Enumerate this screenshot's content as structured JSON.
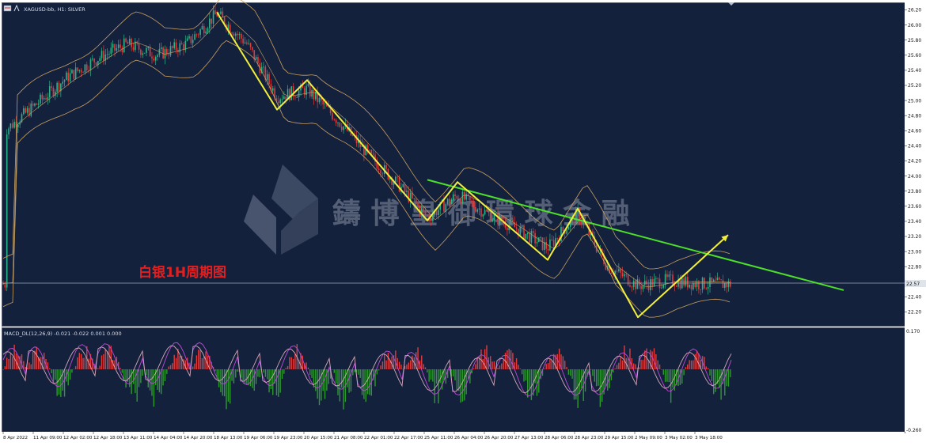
{
  "chart_data": [
    {
      "type": "candlestick",
      "symbol_label": "XAGUSD-bb, H1: SILVER",
      "annotation": "白银1H周期图",
      "watermark": "鑄 博 皇 御 環 球 金 融",
      "price_label": "22.57",
      "ylim": [
        22.0,
        26.3
      ],
      "y_ticks": [
        "26.20",
        "26.00",
        "25.80",
        "25.60",
        "25.40",
        "25.20",
        "25.00",
        "24.80",
        "24.60",
        "24.40",
        "24.20",
        "24.00",
        "23.80",
        "23.60",
        "23.40",
        "23.20",
        "23.00",
        "22.80",
        "22.60",
        "22.40",
        "22.20"
      ],
      "current_price": 22.57,
      "x_ticks": [
        "8 Apr 2022",
        "11 Apr 09:00",
        "12 Apr 02:00",
        "12 Apr 18:00",
        "13 Apr 11:00",
        "14 Apr 04:00",
        "14 Apr 20:00",
        "18 Apr 13:00",
        "19 Apr 06:00",
        "19 Apr 23:00",
        "20 Apr 15:00",
        "21 Apr 08:00",
        "22 Apr 01:00",
        "22 Apr 17:00",
        "25 Apr 11:00",
        "26 Apr 04:00",
        "26 Apr 20:00",
        "27 Apr 13:00",
        "28 Apr 06:00",
        "28 Apr 23:00",
        "29 Apr 15:00",
        "2 May 09:00",
        "3 May 02:00",
        "3 May 18:00"
      ],
      "price_path": [
        {
          "x": "8 Apr 2022",
          "y": 24.62
        },
        {
          "x": "11 Apr 09:00",
          "y": 24.95
        },
        {
          "x": "12 Apr 02:00",
          "y": 25.3
        },
        {
          "x": "12 Apr 18:00",
          "y": 25.55
        },
        {
          "x": "13 Apr 11:00",
          "y": 25.75
        },
        {
          "x": "14 Apr 04:00",
          "y": 25.6
        },
        {
          "x": "14 Apr 20:00",
          "y": 25.75
        },
        {
          "x": "18 Apr 13:00",
          "y": 26.15
        },
        {
          "x": "19 Apr 06:00",
          "y": 25.75
        },
        {
          "x": "19 Apr 23:00",
          "y": 25.05
        },
        {
          "x": "20 Apr 15:00",
          "y": 25.15
        },
        {
          "x": "21 Apr 08:00",
          "y": 24.75
        },
        {
          "x": "22 Apr 01:00",
          "y": 24.3
        },
        {
          "x": "22 Apr 17:00",
          "y": 23.9
        },
        {
          "x": "25 Apr 11:00",
          "y": 23.45
        },
        {
          "x": "26 Apr 04:00",
          "y": 23.75
        },
        {
          "x": "26 Apr 20:00",
          "y": 23.5
        },
        {
          "x": "27 Apr 13:00",
          "y": 23.3
        },
        {
          "x": "28 Apr 06:00",
          "y": 23.05
        },
        {
          "x": "28 Apr 23:00",
          "y": 23.5
        },
        {
          "x": "29 Apr 15:00",
          "y": 22.8
        },
        {
          "x": "2 May 09:00",
          "y": 22.55
        },
        {
          "x": "3 May 02:00",
          "y": 22.62
        },
        {
          "x": "3 May 18:00",
          "y": 22.57
        }
      ],
      "zigzag_yellow": [
        {
          "x": "18 Apr 13:00",
          "y": 26.17
        },
        {
          "x": "19 Apr 23:00",
          "y": 24.88
        },
        {
          "x": "20 Apr 15:00",
          "y": 25.27
        },
        {
          "x": "25 Apr 11:00",
          "y": 23.41
        },
        {
          "x": "26 Apr 04:00",
          "y": 23.92
        },
        {
          "x": "28 Apr 06:00",
          "y": 22.89
        },
        {
          "x": "28 Apr 23:00",
          "y": 23.57
        },
        {
          "x": "2 May 09:00",
          "y": 22.13
        },
        {
          "x": "3 May 18:00",
          "y": 23.22
        }
      ],
      "trendline_green": [
        {
          "x": "25 Apr 11:00",
          "y": 23.95
        },
        {
          "x": "3 May 18:00",
          "y": 23.0
        }
      ],
      "colors": {
        "background": "#14213d",
        "candle_up": "#2db38a",
        "candle_down": "#e03c3c",
        "bollinger": "#c8a060",
        "zigzag": "#f2ef3a",
        "trendline": "#4ce02a",
        "annotation": "#e02020",
        "watermark": "#8a93a6",
        "price_line": "#b0b8c8"
      }
    },
    {
      "type": "macd",
      "label": "MACD_DL(12,26,9) -0.021 -0.022 0.001 0.000",
      "y_top_label": "0.170",
      "y_bottom_label": "-0.260",
      "ylim": [
        -0.26,
        0.17
      ],
      "histogram_sign_pattern": [
        "+",
        "+",
        "-",
        "+",
        "+",
        "-",
        "-",
        "+",
        "+",
        "-",
        "-",
        "-",
        "+",
        "-",
        "-",
        "-",
        "+",
        "+",
        "-",
        "-",
        "+",
        "+",
        "-",
        "+",
        "-",
        "-",
        "+",
        "+",
        "-",
        "+",
        "-"
      ],
      "colors": {
        "positive": "#e03c3c",
        "negative": "#2d9a2d",
        "macd_line": "#c04ad8",
        "signal_line": "#d4a8b8"
      }
    }
  ]
}
